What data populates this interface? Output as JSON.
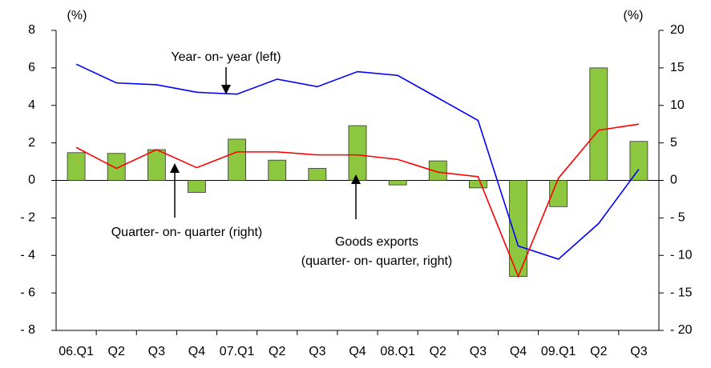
{
  "chart_data": {
    "type": "bar-line",
    "categories": [
      "06.Q1",
      "Q2",
      "Q3",
      "Q4",
      "07.Q1",
      "Q2",
      "Q3",
      "Q4",
      "08.Q1",
      "Q2",
      "Q3",
      "Q4",
      "09.Q1",
      "Q2",
      "Q3"
    ],
    "y_unit": "(%)",
    "y2_unit": "(%)",
    "ylim": [
      -8,
      8
    ],
    "yticks": [
      {
        "value": -8,
        "label": "- 8"
      },
      {
        "value": -6,
        "label": "- 6"
      },
      {
        "value": -4,
        "label": "- 4"
      },
      {
        "value": -2,
        "label": "- 2"
      },
      0,
      2,
      4,
      6,
      8
    ],
    "y2lim": [
      -20,
      20
    ],
    "y2ticks": [
      {
        "value": -20,
        "label": "- 20"
      },
      {
        "value": -15,
        "label": "- 15"
      },
      {
        "value": -10,
        "label": "- 10"
      },
      {
        "value": -5,
        "label": "- 5"
      },
      0,
      5,
      10,
      15,
      20
    ],
    "series": [
      {
        "type": "bar",
        "axis": "y2",
        "color": "#8dc63f",
        "values": [
          3.7,
          3.6,
          4.1,
          -1.6,
          5.5,
          2.7,
          1.6,
          7.3,
          -0.6,
          2.6,
          -1.0,
          -12.8,
          -3.5,
          15.0,
          5.2
        ]
      },
      {
        "type": "line",
        "axis": "y",
        "color": "#0000ff",
        "values": [
          6.2,
          5.2,
          5.1,
          4.7,
          4.6,
          5.4,
          5.0,
          5.8,
          5.6,
          4.4,
          3.2,
          -3.5,
          -4.2,
          -2.3,
          0.6
        ]
      },
      {
        "type": "line",
        "axis": "y2",
        "color": "#ff0000",
        "values": [
          4.4,
          1.6,
          4.1,
          1.7,
          3.8,
          3.8,
          3.4,
          3.4,
          2.8,
          1.1,
          0.5,
          -12.8,
          0.3,
          6.7,
          7.5
        ]
      }
    ],
    "annotations": [
      "Year- on- year (left)",
      "Quarter- on- quarter (right)",
      "Goods exports",
      "(quarter- on- quarter, right)"
    ]
  }
}
